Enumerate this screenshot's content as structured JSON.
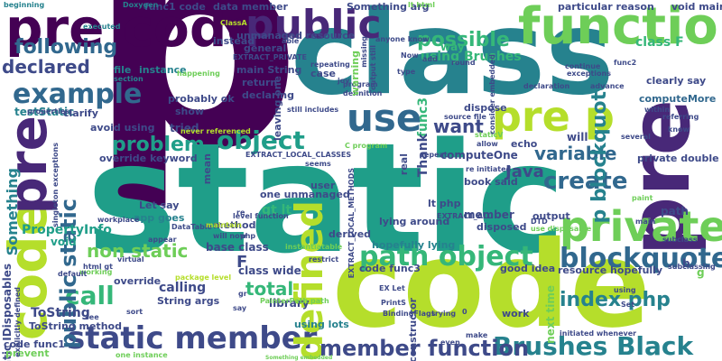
{
  "palette": {
    "purple": "#440154",
    "indigo": "#482878",
    "blue": "#3e4a89",
    "slate": "#31688e",
    "teal": "#26828e",
    "green": "#1f9e89",
    "mint": "#35b779",
    "lime": "#6ece58",
    "yellowgreen": "#b5de2b",
    "yellow": "#fde725"
  },
  "words": {
    "static": "static",
    "p_big": "p",
    "code_big": "code",
    "class": "class",
    "pre_code": "pre code",
    "public": "public",
    "function": "function",
    "pre": "pre",
    "code_left": "code",
    "private": "private",
    "pre_p": "pre p",
    "use": "use",
    "example": "example",
    "static_member": "static member",
    "defined": "defined",
    "brushes_black": "Brushes Black",
    "member_function": "member function",
    "object": "object",
    "path_object": "path object",
    "blockquote_p": "blockquote p",
    "possible": "possible",
    "following": "following",
    "declared": "declared",
    "problem": "problem",
    "variable": "variable",
    "create": "create",
    "call": "call",
    "total": "total",
    "java": "Java",
    "non_static": "non static",
    "public_static": "public static",
    "index_php": "index php",
    "p_blockquote": "p blockquote",
    "using_brushes": "using Brushes",
    "teststatic": "testStatic",
    "pre_small": "pre",
    "static_idisposables": "static IDisposables",
    "tostring": "ToString",
    "tostring_method": "ToString method",
    "code_func1": "code func1",
    "prevent": "prevent",
    "something": "Something",
    "propertyinfo": "PropertyInfo",
    "void": "void",
    "avoid_using": "avoid using",
    "override_keyword": "override keyword",
    "tried": "tried",
    "app_goes": "app goes",
    "let_say": "Let say",
    "gt_lt": "gt lt",
    "base_class": "base class",
    "class_wide": "class wide",
    "f": "F",
    "calling": "calling",
    "string_args": "String args",
    "library": "library",
    "using_lots": "using lots",
    "one_unmanaged": "one unmanaged",
    "code_func3": "code func3",
    "func3": "func3",
    "want": "want",
    "thank": "Thank",
    "computeone": "computeOne",
    "member": "member",
    "will": "will",
    "path": "path",
    "private_double": "private double",
    "class_f": "class F",
    "func1_code": "func1 code",
    "data_member": "data member",
    "something_arg": "Something arg",
    "particular_reason": "particular reason",
    "void_main": "void main",
    "unmanaged_resource": "unmanaged resource",
    "instead": "instead",
    "general": "general",
    "main_string": "main String",
    "return": "return",
    "declaring": "declaring",
    "probably_ok": "probably ok",
    "show": "show",
    "instance": "instance",
    "file": "file",
    "section": "section",
    "executed": "executed",
    "beginning": "beginning",
    "doxygen": "Doxygen",
    "clarify": "clarify",
    "properties": "properties",
    "now": "Now",
    "add": "add",
    "way": "way",
    "case": "case",
    "repeating": "repeating",
    "still_includes": "still includes",
    "dispose": "dispose",
    "source_file": "source file",
    "allow": "allow",
    "echo": "echo",
    "re_initiated": "re initiated",
    "book_said": "book said",
    "disposed": "disposed",
    "lying_around": "lying around",
    "hopefully_lying": "hopefully lying",
    "derived": "derived",
    "lt_php": "lt php",
    "output": "output",
    "resource_hopefully": "resource hopefully",
    "good_idea": "good idea",
    "next_time": "next time",
    "work": "work",
    "trying": "trying",
    "make": "make",
    "even": "even",
    "printS": "PrintS",
    "bindingflags": "BindingFlags",
    "ex_let": "EX Let",
    "using": "using",
    "set": "Set",
    "subclassing": "subclassing",
    "subclass": "subclass",
    "main": "main",
    "several": "several",
    "referring": "referring",
    "clearly_say": "clearly say",
    "advance": "advance",
    "exceptions": "exceptions",
    "declaration": "declaration",
    "round": "round",
    "func2": "func2",
    "computemore": "computeMore",
    "continue": "continue",
    "within": "within",
    "know": "know",
    "sort": "sort",
    "say": "say",
    "override": "override",
    "virtual": "virtual",
    "working": "working",
    "default": "default",
    "appear": "appear",
    "datatable": "DataTable",
    "workplace": "workplace",
    "mean": "mean",
    "seems": "seems",
    "user": "user",
    "real": "real",
    "repeat": "repeat",
    "method": "method",
    "re": "re",
    "restrict": "restrict",
    "extract_all": "EXTRACT_ALL",
    "extract_private": "EXTRACT_PRIVATE",
    "extract_local_classes": "EXTRACT_LOCAL_CLASSES",
    "extract_local_methods": "EXTRACT_LOCAL_METHODS",
    "never_referenced": "never referenced",
    "happening": "happening",
    "singleton_exceptions": "singleton exceptions",
    "explicitly_defined": "explicitly defined",
    "level_function": "level function",
    "instantiatable": "instantiatable",
    "c_program": "C program",
    "staticv": "staticV",
    "joy": "joy",
    "program": "program",
    "definition": "definition",
    "missing": "missing",
    "warning": "warning",
    "type": "type",
    "anyone_know": "anyone know",
    "output_still": "output still",
    "leaving_one": "leaving one",
    "consider_embedded": "consider embedded",
    "something_embedded": "Something embedded",
    "able": "able",
    "dtd": "DTD",
    "classa": "ClassA",
    "lt_html": "lt html",
    "constructor": "constructor",
    "use_disposable": "use disposable",
    "initiated_whenever": "initiated whenever",
    "one_instance": "one instance",
    "html_gt": "html gt",
    "see": "see",
    "maintain": "maintain",
    "paint": "paint",
    "painterpath_path": "PainterPath path",
    "package_level": "package level",
    "will_now": "will now",
    "gr": "gr",
    "php": "php",
    "g": "g",
    "b": "b",
    "o": "0"
  }
}
